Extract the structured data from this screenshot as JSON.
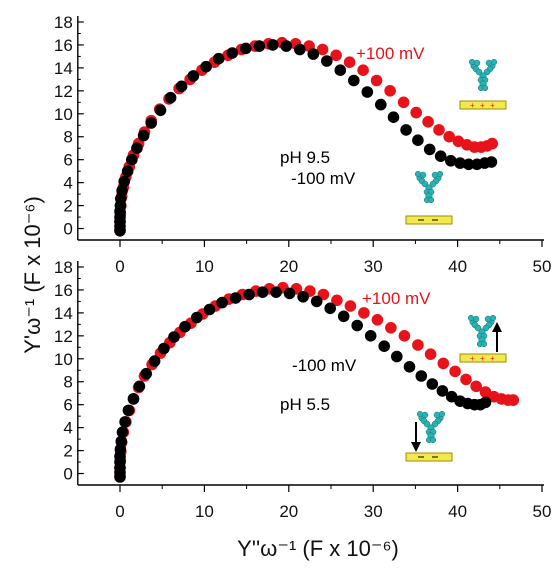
{
  "figure": {
    "shared_ylabel": "Y'ω⁻¹ (F x 10⁻⁶)",
    "shared_xlabel": "Y''ω⁻¹ (F x 10⁻⁶)"
  },
  "colors": {
    "positive": "#e8131a",
    "negative": "#000000",
    "protein": "#2ab3b3",
    "electrode": "#f2e94e"
  },
  "icons": [
    "antibody-upright-on-electrode-icon",
    "antibody-flat-on-electrode-icon",
    "up-arrow-icon",
    "down-arrow-icon"
  ],
  "chart_data": [
    {
      "type": "scatter",
      "panel": "top",
      "title": "",
      "xlabel": "",
      "ylabel": "",
      "xlim": [
        -5,
        50
      ],
      "ylim": [
        -1,
        18
      ],
      "xticks": [
        0,
        10,
        20,
        30,
        40,
        50
      ],
      "yticks": [
        0,
        2,
        4,
        6,
        8,
        10,
        12,
        14,
        16,
        18
      ],
      "show_x_ticklabels": false,
      "grid": false,
      "annotations": [
        {
          "text": "+100 mV",
          "color": "#e8131a",
          "x": 36.5,
          "y": 16.2
        },
        {
          "text": "pH 9.5",
          "color": "#000000",
          "x": 21.5,
          "y": 8.5
        },
        {
          "text": "-100 mV",
          "color": "#000000",
          "x": 23,
          "y": 5.4
        }
      ],
      "series": [
        {
          "name": "+100 mV",
          "color": "#e8131a",
          "x": [
            0,
            0,
            0.05,
            0.1,
            0.2,
            0.4,
            0.7,
            1.1,
            1.6,
            2.2,
            2.9,
            3.7,
            4.7,
            5.8,
            7.0,
            8.3,
            9.7,
            11.2,
            12.8,
            14.4,
            16.0,
            17.6,
            19.2,
            20.8,
            22.4,
            24.0,
            25.6,
            27.2,
            28.8,
            30.4,
            32.0,
            33.6,
            35.1,
            36.5,
            37.8,
            39.0,
            40.1,
            41.1,
            42.0,
            42.8,
            43.5,
            44.1
          ],
          "y": [
            -0.1,
            0.6,
            1.3,
            2.0,
            2.8,
            3.6,
            4.5,
            5.4,
            6.4,
            7.4,
            8.4,
            9.4,
            10.4,
            11.3,
            12.2,
            13.0,
            13.8,
            14.5,
            15.1,
            15.6,
            15.9,
            16.1,
            16.2,
            16.1,
            15.9,
            15.6,
            15.1,
            14.5,
            13.8,
            12.9,
            12.0,
            11.0,
            10.1,
            9.3,
            8.6,
            8.0,
            7.6,
            7.3,
            7.1,
            7.1,
            7.2,
            7.4
          ]
        },
        {
          "name": "-100 mV",
          "color": "#000000",
          "x": [
            0,
            0,
            0,
            0,
            0,
            0.05,
            0.1,
            0.25,
            0.5,
            0.9,
            1.4,
            2.0,
            2.8,
            3.7,
            4.8,
            6.0,
            7.3,
            8.7,
            10.2,
            11.7,
            13.3,
            14.9,
            16.5,
            18.1,
            19.7,
            21.3,
            22.9,
            24.5,
            26.1,
            27.7,
            29.3,
            30.9,
            32.4,
            33.9,
            35.3,
            36.7,
            38.0,
            39.2,
            40.3,
            41.3,
            42.3,
            43.2,
            44.0
          ],
          "y": [
            -0.2,
            0.2,
            0.6,
            1.0,
            1.5,
            2.0,
            2.6,
            3.3,
            4.1,
            5.0,
            6.0,
            7.0,
            8.1,
            9.2,
            10.3,
            11.4,
            12.4,
            13.3,
            14.1,
            14.8,
            15.3,
            15.7,
            15.9,
            16.0,
            15.9,
            15.6,
            15.2,
            14.6,
            13.8,
            12.9,
            11.9,
            10.8,
            9.7,
            8.6,
            7.7,
            6.9,
            6.3,
            5.9,
            5.7,
            5.6,
            5.6,
            5.7,
            5.8
          ]
        }
      ]
    },
    {
      "type": "scatter",
      "panel": "bottom",
      "title": "",
      "xlabel": "",
      "ylabel": "",
      "xlim": [
        -5,
        50
      ],
      "ylim": [
        -1,
        18
      ],
      "xticks": [
        0,
        10,
        20,
        30,
        40,
        50
      ],
      "yticks": [
        0,
        2,
        4,
        6,
        8,
        10,
        12,
        14,
        16,
        18
      ],
      "show_x_ticklabels": true,
      "grid": false,
      "annotations": [
        {
          "text": "+100 mV",
          "color": "#e8131a",
          "x": 35.5,
          "y": 14.4
        },
        {
          "text": "-100 mV",
          "color": "#000000",
          "x": 26.5,
          "y": 8.5
        },
        {
          "text": "pH 5.5",
          "color": "#000000",
          "x": 25.5,
          "y": 4.8
        }
      ],
      "series": [
        {
          "name": "+100 mV",
          "color": "#e8131a",
          "x": [
            0,
            0,
            0.05,
            0.1,
            0.2,
            0.4,
            0.7,
            1.1,
            1.6,
            2.2,
            2.9,
            3.8,
            4.8,
            5.9,
            7.1,
            8.4,
            9.8,
            11.3,
            12.9,
            14.5,
            16.1,
            17.7,
            19.3,
            20.9,
            22.5,
            24.1,
            25.7,
            27.3,
            28.9,
            30.5,
            32.1,
            33.7,
            35.3,
            36.8,
            38.3,
            39.7,
            41.0,
            42.2,
            43.3,
            44.3,
            45.2,
            46.0,
            46.6
          ],
          "y": [
            -0.2,
            0.5,
            1.2,
            1.9,
            2.7,
            3.6,
            4.5,
            5.5,
            6.5,
            7.5,
            8.5,
            9.5,
            10.5,
            11.4,
            12.3,
            13.1,
            13.9,
            14.6,
            15.2,
            15.6,
            15.9,
            16.1,
            16.2,
            16.1,
            15.9,
            15.6,
            15.1,
            14.6,
            14.0,
            13.4,
            12.7,
            12.0,
            11.2,
            10.4,
            9.6,
            8.9,
            8.2,
            7.6,
            7.1,
            6.7,
            6.5,
            6.4,
            6.4
          ]
        },
        {
          "name": "-100 mV",
          "color": "#000000",
          "x": [
            0,
            0,
            0,
            0,
            0,
            0.05,
            0.15,
            0.3,
            0.6,
            1.0,
            1.6,
            2.3,
            3.1,
            4.1,
            5.2,
            6.4,
            7.7,
            9.1,
            10.6,
            12.1,
            13.7,
            15.3,
            16.9,
            18.5,
            20.1,
            21.7,
            23.3,
            24.9,
            26.5,
            28.1,
            29.7,
            31.3,
            32.8,
            34.3,
            35.7,
            37.0,
            38.2,
            39.3,
            40.3,
            41.2,
            42.0,
            42.7,
            43.3
          ],
          "y": [
            -0.3,
            0.1,
            0.5,
            1.0,
            1.5,
            2.1,
            2.8,
            3.6,
            4.5,
            5.5,
            6.5,
            7.6,
            8.7,
            9.8,
            10.9,
            11.9,
            12.8,
            13.6,
            14.3,
            14.9,
            15.3,
            15.6,
            15.8,
            15.8,
            15.7,
            15.4,
            15.0,
            14.4,
            13.7,
            12.9,
            12.0,
            11.1,
            10.2,
            9.3,
            8.5,
            7.8,
            7.2,
            6.7,
            6.3,
            6.1,
            6.0,
            6.0,
            6.2
          ]
        }
      ]
    }
  ]
}
